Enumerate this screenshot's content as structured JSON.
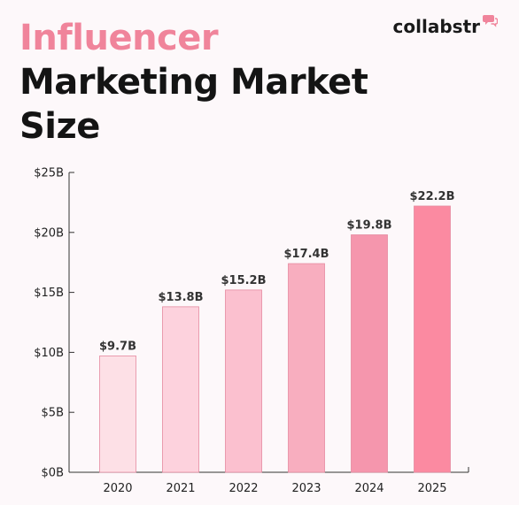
{
  "header": {
    "title_line1": "Influencer",
    "title_line2": "Marketing Market",
    "title_line3": "Size",
    "accent_color": "#f0849b",
    "dark_color": "#141414"
  },
  "brand": {
    "name": "collabstr",
    "icon": "speech-bubbles-icon",
    "icon_color": "#f0849b"
  },
  "chart_data": {
    "type": "bar",
    "categories": [
      "2020",
      "2021",
      "2022",
      "2023",
      "2024",
      "2025"
    ],
    "values": [
      9.7,
      13.8,
      15.2,
      17.4,
      19.8,
      22.2
    ],
    "data_labels": [
      "$9.7B",
      "$13.8B",
      "$15.2B",
      "$17.4B",
      "$19.8B",
      "$22.2B"
    ],
    "ylim": [
      0,
      25
    ],
    "yticks": [
      0,
      5,
      10,
      15,
      20,
      25
    ],
    "ytick_labels": [
      "$0B",
      "$5B",
      "$10B",
      "$15B",
      "$20B",
      "$25B"
    ],
    "bar_colors": [
      "#fde0e6",
      "#fdd2dd",
      "#fbc0cf",
      "#f8aebf",
      "#f596ad",
      "#fb8aa1"
    ],
    "grid": false
  }
}
